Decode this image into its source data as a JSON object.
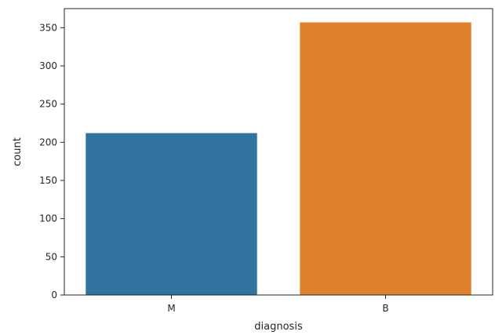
{
  "chart_data": {
    "type": "bar",
    "categories": [
      "M",
      "B"
    ],
    "values": [
      212,
      357
    ],
    "xlabel": "diagnosis",
    "ylabel": "count",
    "ylim": [
      0,
      375
    ],
    "yticks": [
      0,
      50,
      100,
      150,
      200,
      250,
      300,
      350
    ],
    "colors": [
      "#3274a1",
      "#e1812c"
    ],
    "grid": false
  }
}
